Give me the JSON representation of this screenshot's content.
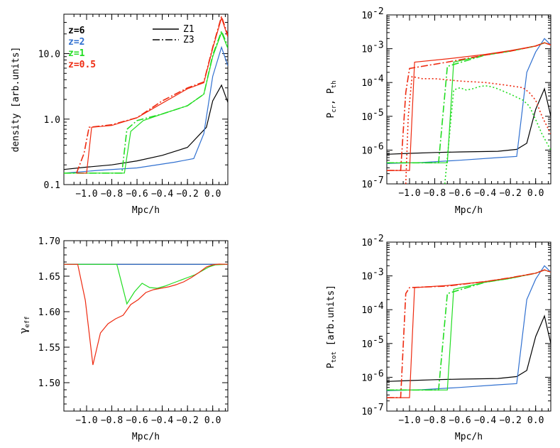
{
  "colors": {
    "z6": "#000000",
    "z2": "#3070d0",
    "z1": "#22dd22",
    "z05": "#ee2a10"
  },
  "legend": {
    "redshifts": [
      {
        "label": "z=6",
        "color": "#000000"
      },
      {
        "label": "z=2",
        "color": "#3070d0"
      },
      {
        "label": "z=1",
        "color": "#22dd22"
      },
      {
        "label": "z=0.5",
        "color": "#ee2a10"
      }
    ],
    "styles": [
      {
        "label": "Z1",
        "dash": "solid"
      },
      {
        "label": "Z3",
        "dash": "dashdot"
      }
    ]
  },
  "chart_data": [
    {
      "id": "density",
      "type": "line",
      "xlabel": "Mpc/h",
      "ylabel": "density [arb.units]",
      "xlim": [
        -1.18,
        0.12
      ],
      "ylim": [
        0.1,
        40
      ],
      "yscale": "log",
      "xticks": [
        -1.0,
        -0.8,
        -0.6,
        -0.4,
        -0.2,
        0.0
      ],
      "xtick_labels": [
        "−1.0",
        "−0.8",
        "−0.6",
        "−0.4",
        "−0.2",
        "0.0"
      ],
      "yticks": [
        0.1,
        1.0,
        10.0
      ],
      "ytick_labels": [
        "0.1",
        "1.0",
        "10.0"
      ],
      "series": [
        {
          "color": "#000000",
          "dash": "solid",
          "x": [
            -1.18,
            -1.0,
            -0.8,
            -0.6,
            -0.4,
            -0.2,
            -0.05,
            0.0,
            0.07,
            0.12
          ],
          "y": [
            0.17,
            0.185,
            0.2,
            0.23,
            0.28,
            0.37,
            0.75,
            1.9,
            3.3,
            1.8
          ]
        },
        {
          "color": "#3070d0",
          "dash": "solid",
          "x": [
            -1.18,
            -0.9,
            -0.6,
            -0.3,
            -0.15,
            -0.07,
            0.0,
            0.07,
            0.12
          ],
          "y": [
            0.15,
            0.165,
            0.18,
            0.22,
            0.25,
            0.6,
            4.5,
            12.5,
            6.5
          ]
        },
        {
          "color": "#22dd22",
          "dash": "solid",
          "x": [
            -1.18,
            -0.75,
            -0.7,
            -0.65,
            -0.55,
            -0.4,
            -0.2,
            -0.07,
            0.0,
            0.07,
            0.12
          ],
          "y": [
            0.15,
            0.15,
            0.15,
            0.65,
            0.95,
            1.2,
            1.6,
            2.4,
            9.0,
            21,
            12
          ]
        },
        {
          "color": "#22dd22",
          "dash": "dashdot",
          "x": [
            -1.18,
            -0.72,
            -0.68,
            -0.6,
            -0.4,
            -0.2,
            -0.07,
            0.0,
            0.07,
            0.12
          ],
          "y": [
            0.15,
            0.15,
            0.7,
            0.95,
            1.2,
            1.6,
            2.4,
            9.5,
            22,
            13
          ]
        },
        {
          "color": "#ee2a10",
          "dash": "solid",
          "x": [
            -1.08,
            -1.0,
            -0.96,
            -0.8,
            -0.6,
            -0.4,
            -0.2,
            -0.07,
            0.0,
            0.07,
            0.12
          ],
          "y": [
            0.15,
            0.15,
            0.75,
            0.8,
            1.05,
            1.75,
            2.9,
            3.6,
            12,
            35,
            18
          ]
        },
        {
          "color": "#ee2a10",
          "dash": "dashdot",
          "x": [
            -1.08,
            -1.02,
            -0.98,
            -0.8,
            -0.6,
            -0.4,
            -0.2,
            -0.07,
            0.0,
            0.07,
            0.12
          ],
          "y": [
            0.15,
            0.3,
            0.75,
            0.82,
            1.05,
            1.9,
            3.0,
            3.7,
            12.5,
            37,
            19
          ]
        }
      ]
    },
    {
      "id": "pressure",
      "type": "line",
      "xlabel": "Mpc/h",
      "ylabel_main": "P",
      "ylabel_sub1": "cr",
      "ylabel_sep": ", P",
      "ylabel_sub2": "th",
      "xlim": [
        -1.18,
        0.12
      ],
      "ylim": [
        1e-07,
        0.01
      ],
      "yscale": "log",
      "xticks": [
        -1.0,
        -0.8,
        -0.6,
        -0.4,
        -0.2,
        0.0
      ],
      "xtick_labels": [
        "−1.0",
        "−0.8",
        "−0.6",
        "−0.4",
        "−0.2",
        "0.0"
      ],
      "yticks": [
        1e-07,
        1e-06,
        1e-05,
        0.0001,
        0.001,
        0.01
      ],
      "ytick_mant": [
        "10",
        "10",
        "10",
        "10",
        "10",
        "10"
      ],
      "ytick_exp": [
        "-7",
        "-6",
        "-5",
        "-4",
        "-3",
        "-2"
      ],
      "series": [
        {
          "color": "#000000",
          "dash": "solid",
          "x": [
            -1.18,
            -1.0,
            -0.8,
            -0.6,
            -0.3,
            -0.15,
            -0.07,
            0.0,
            0.07,
            0.12
          ],
          "y": [
            7.5e-07,
            8e-07,
            8.5e-07,
            8.8e-07,
            9.2e-07,
            1.05e-06,
            1.6e-06,
            1.6e-05,
            6.5e-05,
            1e-05
          ]
        },
        {
          "color": "#3070d0",
          "dash": "solid",
          "x": [
            -1.18,
            -0.9,
            -0.6,
            -0.3,
            -0.15,
            -0.07,
            0.0,
            0.07,
            0.12
          ],
          "y": [
            4e-07,
            4.3e-07,
            5e-07,
            6e-07,
            6.5e-07,
            0.0002,
            0.0008,
            0.002,
            0.0013
          ]
        },
        {
          "color": "#22dd22",
          "dash": "solid",
          "x": [
            -1.18,
            -0.7,
            -0.65,
            -0.4,
            -0.2,
            0.0,
            0.07,
            0.12
          ],
          "y": [
            4.2e-07,
            4.2e-07,
            0.0004,
            0.00065,
            0.00085,
            0.0012,
            0.0015,
            0.0013
          ]
        },
        {
          "color": "#22dd22",
          "dash": "dashdot",
          "x": [
            -1.18,
            -0.77,
            -0.7,
            -0.4,
            -0.2,
            0.0,
            0.07,
            0.12
          ],
          "y": [
            4.2e-07,
            4.2e-07,
            0.0003,
            0.00065,
            0.00085,
            0.0012,
            0.0015,
            0.0013
          ]
        },
        {
          "color": "#22dd22",
          "dash": "dot",
          "x": [
            -0.72,
            -0.69,
            -0.65,
            -0.6,
            -0.55,
            -0.5,
            -0.45,
            -0.4,
            -0.35,
            -0.3,
            -0.2,
            -0.1,
            -0.05,
            0.0,
            0.05,
            0.12
          ],
          "y": [
            1e-07,
            1.5e-06,
            6e-05,
            7e-05,
            6e-05,
            6.5e-05,
            7.5e-05,
            8e-05,
            7.5e-05,
            6.5e-05,
            4.5e-05,
            3e-05,
            2e-05,
            8e-06,
            3e-06,
            1e-06
          ]
        },
        {
          "color": "#ee2a10",
          "dash": "solid",
          "x": [
            -1.18,
            -1.0,
            -0.96,
            -0.7,
            -0.4,
            -0.2,
            0.0,
            0.07,
            0.12
          ],
          "y": [
            2.5e-07,
            2.5e-07,
            0.0004,
            0.0005,
            0.00068,
            0.00088,
            0.0012,
            0.0015,
            0.0013
          ]
        },
        {
          "color": "#ee2a10",
          "dash": "dashdot",
          "x": [
            -1.18,
            -1.07,
            -1.03,
            -1.0,
            -0.7,
            -0.4,
            -0.2,
            0.0,
            0.07,
            0.12
          ],
          "y": [
            2.5e-07,
            2.5e-07,
            5e-05,
            0.00026,
            0.0004,
            0.00065,
            0.00085,
            0.0012,
            0.0015,
            0.0013
          ]
        },
        {
          "color": "#ee2a10",
          "dash": "dot",
          "x": [
            -1.03,
            -1.01,
            -0.98,
            -0.9,
            -0.8,
            -0.7,
            -0.6,
            -0.5,
            -0.4,
            -0.3,
            -0.2,
            -0.1,
            -0.05,
            0.0,
            0.05,
            0.12
          ],
          "y": [
            1e-07,
            1e-05,
            0.00015,
            0.00013,
            0.00013,
            0.00012,
            0.00011,
            0.000105,
            0.0001,
            9e-05,
            8e-05,
            7e-05,
            5e-05,
            3e-05,
            1e-05,
            3e-06
          ]
        }
      ]
    },
    {
      "id": "gamma",
      "type": "line",
      "xlabel": "Mpc/h",
      "ylabel_main": "γ",
      "ylabel_sub": "eff",
      "xlim": [
        -1.18,
        0.12
      ],
      "ylim": [
        1.46,
        1.7
      ],
      "yscale": "linear",
      "xticks": [
        -1.0,
        -0.8,
        -0.6,
        -0.4,
        -0.2,
        0.0
      ],
      "xtick_labels": [
        "−1.0",
        "−0.8",
        "−0.6",
        "−0.4",
        "−0.2",
        "0.0"
      ],
      "yticks": [
        1.5,
        1.55,
        1.6,
        1.65,
        1.7
      ],
      "ytick_labels": [
        "1.50",
        "1.55",
        "1.60",
        "1.65",
        "1.70"
      ],
      "series": [
        {
          "color": "#000000",
          "dash": "solid",
          "x": [
            -1.18,
            0.12
          ],
          "y": [
            1.6667,
            1.6667
          ]
        },
        {
          "color": "#3070d0",
          "dash": "solid",
          "x": [
            -1.18,
            0.12
          ],
          "y": [
            1.6667,
            1.6667
          ]
        },
        {
          "color": "#22dd22",
          "dash": "solid",
          "x": [
            -1.18,
            -0.76,
            -0.68,
            -0.62,
            -0.56,
            -0.5,
            -0.44,
            -0.38,
            -0.32,
            -0.26,
            -0.2,
            -0.14,
            -0.08,
            -0.03,
            0.02,
            0.12
          ],
          "y": [
            1.6667,
            1.6667,
            1.611,
            1.628,
            1.64,
            1.634,
            1.633,
            1.636,
            1.64,
            1.644,
            1.648,
            1.652,
            1.658,
            1.663,
            1.666,
            1.6667
          ]
        },
        {
          "color": "#ee2a10",
          "dash": "solid",
          "x": [
            -1.18,
            -1.07,
            -1.01,
            -0.95,
            -0.89,
            -0.83,
            -0.77,
            -0.71,
            -0.65,
            -0.59,
            -0.53,
            -0.47,
            -0.41,
            -0.35,
            -0.29,
            -0.23,
            -0.17,
            -0.11,
            -0.05,
            0.0,
            0.05,
            0.12
          ],
          "y": [
            1.6667,
            1.6667,
            1.616,
            1.525,
            1.57,
            1.583,
            1.59,
            1.595,
            1.61,
            1.617,
            1.627,
            1.631,
            1.633,
            1.635,
            1.638,
            1.642,
            1.648,
            1.655,
            1.663,
            1.666,
            1.667,
            1.6667
          ]
        }
      ]
    },
    {
      "id": "ptot",
      "type": "line",
      "xlabel": "Mpc/h",
      "ylabel_main": "P",
      "ylabel_sub": "tot",
      "ylabel_rest": " [arb.units]",
      "xlim": [
        -1.18,
        0.12
      ],
      "ylim": [
        1e-07,
        0.01
      ],
      "yscale": "log",
      "xticks": [
        -1.0,
        -0.8,
        -0.6,
        -0.4,
        -0.2,
        0.0
      ],
      "xtick_labels": [
        "−1.0",
        "−0.8",
        "−0.6",
        "−0.4",
        "−0.2",
        "0.0"
      ],
      "yticks": [
        1e-07,
        1e-06,
        1e-05,
        0.0001,
        0.001,
        0.01
      ],
      "ytick_mant": [
        "10",
        "10",
        "10",
        "10",
        "10",
        "10"
      ],
      "ytick_exp": [
        "-7",
        "-6",
        "-5",
        "-4",
        "-3",
        "-2"
      ],
      "series": [
        {
          "color": "#000000",
          "dash": "solid",
          "x": [
            -1.18,
            -1.0,
            -0.8,
            -0.6,
            -0.3,
            -0.15,
            -0.07,
            0.0,
            0.07,
            0.12
          ],
          "y": [
            7.5e-07,
            8e-07,
            8.5e-07,
            8.8e-07,
            9.2e-07,
            1.05e-06,
            1.6e-06,
            1.6e-05,
            6.5e-05,
            1e-05
          ]
        },
        {
          "color": "#3070d0",
          "dash": "solid",
          "x": [
            -1.18,
            -0.9,
            -0.6,
            -0.3,
            -0.15,
            -0.07,
            0.0,
            0.07,
            0.12
          ],
          "y": [
            4e-07,
            4.3e-07,
            5e-07,
            6e-07,
            6.5e-07,
            0.0002,
            0.0008,
            0.002,
            0.0013
          ]
        },
        {
          "color": "#22dd22",
          "dash": "solid",
          "x": [
            -1.18,
            -0.7,
            -0.65,
            -0.4,
            -0.2,
            0.0,
            0.07,
            0.12
          ],
          "y": [
            4.2e-07,
            4.2e-07,
            0.0004,
            0.00065,
            0.00085,
            0.0012,
            0.0015,
            0.0013
          ]
        },
        {
          "color": "#22dd22",
          "dash": "dashdot",
          "x": [
            -1.18,
            -0.77,
            -0.7,
            -0.4,
            -0.2,
            0.0,
            0.07,
            0.12
          ],
          "y": [
            4.2e-07,
            4.2e-07,
            0.0003,
            0.00065,
            0.00085,
            0.0012,
            0.0015,
            0.0013
          ]
        },
        {
          "color": "#ee2a10",
          "dash": "solid",
          "x": [
            -1.18,
            -1.0,
            -0.96,
            -0.7,
            -0.4,
            -0.2,
            0.0,
            0.07,
            0.12
          ],
          "y": [
            2.5e-07,
            2.5e-07,
            0.00045,
            0.00052,
            0.00068,
            0.00088,
            0.0012,
            0.0015,
            0.0013
          ]
        },
        {
          "color": "#ee2a10",
          "dash": "dashdot",
          "x": [
            -1.18,
            -1.07,
            -1.03,
            -1.0,
            -0.7,
            -0.4,
            -0.2,
            0.0,
            0.07,
            0.12
          ],
          "y": [
            2.5e-07,
            2.5e-07,
            0.0003,
            0.00045,
            0.0005,
            0.00068,
            0.00088,
            0.0012,
            0.0015,
            0.0013
          ]
        }
      ]
    }
  ]
}
